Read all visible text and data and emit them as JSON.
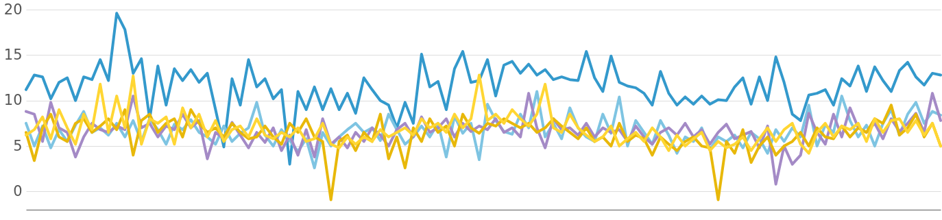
{
  "chart_data": {
    "type": "line",
    "categories": [
      null,
      null,
      null,
      null,
      null,
      null,
      null,
      null,
      null,
      null,
      null,
      null,
      null,
      null,
      null,
      null,
      null,
      null,
      null,
      null,
      null,
      null,
      null,
      null,
      null,
      null,
      null,
      null,
      null,
      null,
      null,
      null,
      null,
      null,
      null,
      null,
      null,
      null,
      null,
      null,
      null,
      null,
      null,
      null,
      null,
      null,
      null,
      null,
      null,
      null,
      null,
      null,
      null,
      null,
      null,
      null,
      null,
      null,
      null,
      null,
      null,
      null,
      null,
      null,
      null,
      null,
      null,
      null,
      null,
      null,
      null,
      null,
      null,
      null,
      null,
      null,
      null,
      null,
      null,
      null,
      null,
      null,
      null,
      null,
      null,
      null,
      null,
      null,
      null,
      null,
      null,
      null,
      null,
      null,
      null,
      null,
      null,
      null,
      null,
      null,
      null,
      null,
      null,
      null,
      null,
      null,
      null,
      null,
      null,
      null,
      null,
      null
    ],
    "ylim": [
      -2,
      20
    ],
    "yticks": [
      0,
      5,
      10,
      15,
      20
    ],
    "grid": "y",
    "tick_labels": "y",
    "line_style": "solid",
    "series": [
      {
        "color": "#3399cc",
        "values": [
          11.2,
          12.8,
          12.6,
          10.2,
          12.0,
          12.5,
          10.0,
          12.6,
          12.3,
          14.5,
          12.2,
          19.6,
          17.8,
          13.0,
          14.6,
          8.0,
          13.8,
          9.5,
          13.5,
          12.2,
          13.4,
          12.0,
          13.0,
          9.0,
          4.9,
          12.4,
          9.5,
          14.5,
          11.5,
          12.4,
          10.2,
          11.2,
          3.0,
          11.0,
          9.0,
          11.5,
          9.0,
          11.3,
          9.0,
          10.8,
          8.6,
          12.5,
          11.2,
          10.0,
          9.5,
          7.0,
          9.8,
          7.5,
          15.1,
          11.5,
          12.1,
          9.0,
          13.5,
          15.4,
          12.0,
          12.2,
          14.5,
          10.5,
          13.9,
          14.3,
          13.0,
          14.0,
          12.8,
          13.4,
          12.3,
          12.6,
          12.3,
          12.2,
          15.4,
          12.5,
          11.0,
          14.9,
          12.0,
          11.6,
          11.4,
          10.8,
          9.5,
          13.2,
          10.8,
          9.5,
          10.4,
          9.6,
          10.5,
          9.6,
          10.1,
          10.0,
          11.5,
          12.5,
          9.6,
          12.6,
          10.0,
          14.8,
          12.0,
          8.5,
          7.8,
          10.6,
          10.8,
          11.2,
          9.5,
          12.4,
          11.6,
          13.8,
          11.0,
          13.7,
          12.2,
          11.0,
          13.3,
          14.2,
          12.6,
          11.7,
          13.0,
          12.8
        ]
      },
      {
        "color": "#7ec4e2",
        "values": [
          7.5,
          5.0,
          7.2,
          4.8,
          6.8,
          5.5,
          7.3,
          8.8,
          6.5,
          7.0,
          6.2,
          7.5,
          6.0,
          7.8,
          5.5,
          8.0,
          6.8,
          5.2,
          7.4,
          6.8,
          7.9,
          6.5,
          6.0,
          5.2,
          7.2,
          5.5,
          6.4,
          7.0,
          9.8,
          6.2,
          5.0,
          6.8,
          5.6,
          4.4,
          5.8,
          2.6,
          6.5,
          5.0,
          6.0,
          6.8,
          7.5,
          6.5,
          7.0,
          5.6,
          8.5,
          6.8,
          5.2,
          6.0,
          7.2,
          6.0,
          7.5,
          3.8,
          8.3,
          6.4,
          7.5,
          3.5,
          9.6,
          7.8,
          6.6,
          6.3,
          8.5,
          7.0,
          11.0,
          6.0,
          7.5,
          5.8,
          9.2,
          7.0,
          6.0,
          5.5,
          8.5,
          6.4,
          10.4,
          5.0,
          7.8,
          6.5,
          5.2,
          7.8,
          6.2,
          4.2,
          6.0,
          5.5,
          7.0,
          4.6,
          6.0,
          5.5,
          6.2,
          4.8,
          6.5,
          5.8,
          4.2,
          6.8,
          5.5,
          7.0,
          6.0,
          9.5,
          5.0,
          7.3,
          6.5,
          10.5,
          7.8,
          6.0,
          7.3,
          5.0,
          7.5,
          9.0,
          6.2,
          8.5,
          9.8,
          7.5,
          8.8,
          8.4
        ]
      },
      {
        "color": "#a48ac6",
        "values": [
          8.8,
          8.5,
          5.5,
          9.8,
          7.0,
          6.5,
          3.8,
          6.0,
          7.5,
          6.8,
          6.5,
          7.2,
          6.8,
          10.5,
          7.0,
          7.5,
          6.0,
          7.2,
          6.8,
          8.5,
          7.0,
          7.8,
          3.6,
          6.5,
          5.8,
          7.6,
          6.2,
          4.8,
          6.5,
          5.4,
          7.0,
          4.5,
          6.2,
          4.0,
          6.8,
          3.8,
          8.0,
          5.2,
          6.0,
          4.8,
          6.5,
          5.5,
          7.0,
          6.2,
          5.0,
          6.8,
          7.5,
          6.0,
          8.2,
          6.5,
          7.0,
          8.0,
          6.0,
          7.5,
          6.6,
          7.2,
          6.8,
          8.0,
          6.5,
          7.0,
          6.0,
          10.8,
          7.0,
          4.8,
          8.0,
          6.8,
          7.0,
          6.2,
          7.5,
          6.0,
          7.0,
          6.5,
          6.8,
          5.5,
          7.2,
          6.0,
          5.2,
          6.5,
          7.0,
          6.2,
          7.5,
          6.0,
          6.8,
          5.2,
          6.5,
          7.4,
          5.8,
          6.2,
          6.6,
          4.8,
          7.2,
          0.8,
          5.0,
          3.0,
          4.0,
          8.6,
          6.5,
          5.2,
          8.5,
          6.0,
          9.2,
          7.0,
          6.5,
          7.5,
          5.8,
          8.0,
          6.6,
          7.5,
          8.6,
          6.5,
          10.8,
          7.8
        ]
      },
      {
        "color": "#e8b80a",
        "values": [
          6.5,
          3.4,
          7.0,
          8.5,
          6.0,
          5.5,
          7.5,
          8.0,
          6.5,
          7.2,
          8.0,
          6.8,
          9.0,
          4.0,
          7.8,
          8.5,
          6.5,
          7.5,
          8.0,
          6.0,
          9.0,
          7.5,
          6.5,
          7.0,
          6.0,
          7.5,
          6.5,
          5.8,
          6.0,
          7.2,
          6.0,
          5.2,
          7.5,
          6.5,
          8.0,
          6.0,
          5.5,
          -0.9,
          5.5,
          6.2,
          4.5,
          6.5,
          5.5,
          8.5,
          3.6,
          6.0,
          2.6,
          7.0,
          5.5,
          8.0,
          6.5,
          7.2,
          5.0,
          8.5,
          7.0,
          6.4,
          7.5,
          7.2,
          8.0,
          7.5,
          7.0,
          7.5,
          6.5,
          7.0,
          8.0,
          7.2,
          6.5,
          5.8,
          7.0,
          5.5,
          6.0,
          5.0,
          7.5,
          5.5,
          6.2,
          5.8,
          4.0,
          6.0,
          5.2,
          4.5,
          5.5,
          6.0,
          5.0,
          4.8,
          -0.9,
          5.5,
          4.2,
          6.8,
          3.2,
          5.0,
          6.0,
          4.0,
          5.0,
          5.5,
          6.5,
          5.0,
          7.0,
          6.0,
          5.8,
          7.2,
          6.0,
          7.0,
          6.5,
          8.0,
          7.5,
          9.5,
          6.2,
          7.0,
          8.5,
          6.0,
          7.5,
          5.0
        ]
      },
      {
        "color": "#ffd633",
        "values": [
          6.2,
          6.8,
          8.2,
          5.8,
          9.0,
          7.0,
          5.2,
          8.5,
          6.8,
          11.8,
          6.5,
          10.5,
          7.0,
          12.7,
          5.2,
          8.0,
          7.5,
          8.2,
          5.2,
          9.2,
          7.0,
          8.5,
          6.0,
          7.8,
          5.5,
          6.8,
          7.2,
          6.0,
          8.0,
          6.2,
          5.8,
          6.5,
          6.0,
          7.0,
          5.5,
          5.8,
          7.5,
          5.2,
          4.8,
          6.0,
          5.2,
          6.0,
          5.5,
          6.8,
          6.0,
          6.5,
          7.0,
          6.2,
          8.0,
          7.0,
          7.5,
          6.5,
          8.5,
          7.0,
          8.0,
          12.8,
          7.8,
          8.5,
          7.5,
          9.0,
          8.0,
          7.2,
          8.5,
          11.8,
          7.0,
          6.5,
          8.5,
          7.0,
          6.2,
          5.5,
          6.0,
          7.2,
          5.0,
          5.8,
          6.5,
          5.5,
          7.0,
          6.0,
          4.5,
          6.2,
          5.0,
          5.8,
          6.5,
          4.5,
          5.5,
          4.8,
          5.2,
          6.0,
          4.5,
          5.8,
          7.0,
          5.5,
          6.8,
          7.5,
          5.2,
          4.2,
          6.5,
          7.5,
          6.0,
          7.2,
          6.8,
          7.5,
          5.5,
          8.0,
          6.5,
          7.8,
          8.0,
          6.5,
          7.8,
          6.2,
          7.5,
          5.0
        ]
      }
    ]
  }
}
